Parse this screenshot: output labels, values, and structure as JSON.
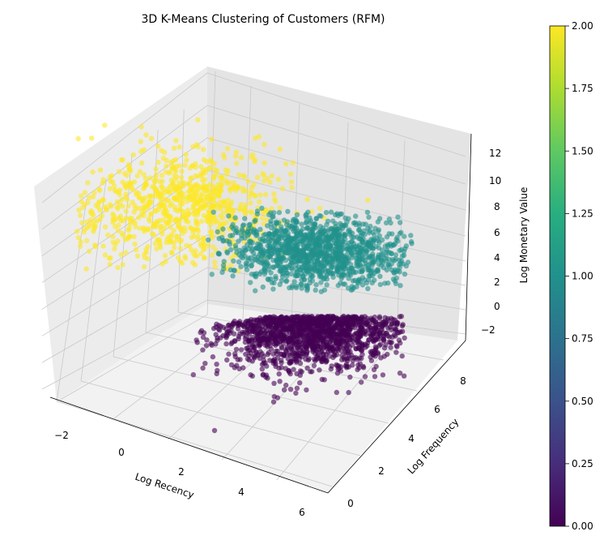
{
  "chart_data": {
    "type": "scatter",
    "projection": "3d",
    "title": "3D K-Means Clustering of Customers (RFM)",
    "xlabel": "Log Recency",
    "ylabel": "Log Frequency",
    "zlabel": "Log Monetary Value",
    "x_ticks": [
      "−2",
      "0",
      "2",
      "4",
      "6"
    ],
    "y_ticks": [
      "0",
      "2",
      "4",
      "6",
      "8"
    ],
    "z_ticks": [
      "−2",
      "0",
      "2",
      "4",
      "6",
      "8",
      "10",
      "12"
    ],
    "xlim": [
      -3,
      6.5
    ],
    "ylim": [
      -0.5,
      9.5
    ],
    "zlim": [
      -3.5,
      13.5
    ],
    "grid": true,
    "colormap": "viridis",
    "colorbar": {
      "range": [
        0,
        2
      ],
      "ticks": [
        "0.00",
        "0.25",
        "0.50",
        "0.75",
        "1.00",
        "1.25",
        "1.50",
        "1.75",
        "2.00"
      ]
    },
    "series": [
      {
        "cluster": 0,
        "color": "#440154",
        "description_region": "low monetary value, x 0–5.5, z −3–3.5"
      },
      {
        "cluster": 1,
        "color": "#21918c",
        "description_region": "mid monetary value, x 0–6, z 3.5–8"
      },
      {
        "cluster": 2,
        "color": "#fde725",
        "description_region": "high monetary value / low recency, x −2–3, z 4–13"
      }
    ]
  }
}
